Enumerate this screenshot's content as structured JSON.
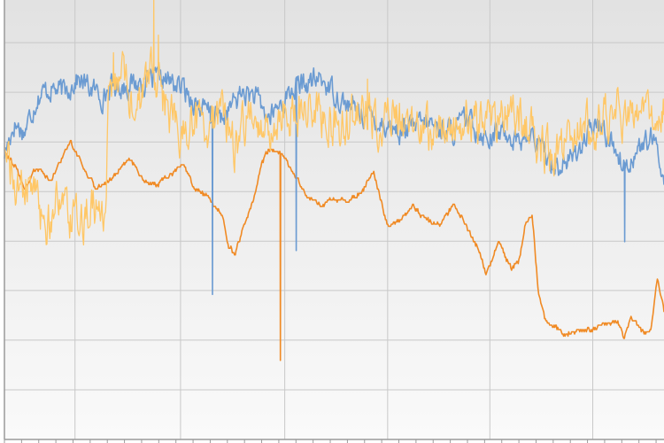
{
  "chart_data": {
    "type": "line",
    "title": "",
    "xlabel": "",
    "ylabel": "",
    "grid": true,
    "legend": "none",
    "xlim": [
      0,
      100
    ],
    "ylim": [
      0,
      100
    ],
    "y_gridlines": [
      0,
      11.3,
      22.6,
      33.9,
      45.1,
      56.4,
      67.7,
      79.0,
      90.3,
      101.5
    ],
    "x_gridlines": [
      10.7,
      26.7,
      42.5,
      58.1,
      73.6,
      89.2
    ],
    "colors": {
      "blue": "#6b9bd2",
      "orange": "#f08a24",
      "yellow": "#ffc766",
      "grid": "#c8c8c8",
      "bg_top": "#e2e2e2",
      "bg_bottom": "#fafafa"
    },
    "series": [
      {
        "name": "blue",
        "noise": 2.2,
        "x": [
          0,
          1.5,
          3,
          5,
          7,
          9,
          11,
          13,
          15,
          16,
          20,
          24,
          27,
          30,
          33,
          36,
          38,
          40,
          44,
          48,
          52,
          56,
          60,
          64,
          68,
          70,
          73,
          76,
          78,
          80,
          82,
          84,
          86,
          88,
          90,
          92,
          94,
          96,
          98,
          99.3,
          100
        ],
        "y": [
          65,
          72,
          70,
          78,
          80,
          79,
          82,
          80,
          78,
          80,
          81,
          82,
          80,
          75,
          73,
          79,
          78,
          73,
          80,
          82,
          76,
          73,
          70,
          72,
          70,
          73,
          69,
          70,
          68,
          69,
          65,
          62,
          64,
          68,
          72,
          68,
          62,
          66,
          68,
          65,
          58
        ],
        "spikes": [
          {
            "x": 31.5,
            "y": 33
          },
          {
            "x": 44.2,
            "y": 43
          },
          {
            "x": 57.0,
            "y": 72
          },
          {
            "x": 94.0,
            "y": 45
          },
          {
            "x": 31.2,
            "y": 72
          }
        ]
      },
      {
        "name": "orange",
        "noise": 0.45,
        "x": [
          0,
          2,
          3,
          5,
          7,
          9,
          10,
          11,
          12,
          14,
          16,
          17,
          19,
          21,
          23,
          25,
          27,
          29,
          31,
          33,
          34,
          35,
          36,
          38,
          39,
          40,
          42,
          44,
          46,
          48,
          50,
          52,
          54,
          56,
          58,
          60,
          62,
          64,
          66,
          68,
          70,
          72,
          73,
          74,
          75,
          76,
          77,
          78,
          79,
          80,
          81,
          82,
          83,
          85,
          87,
          89,
          91,
          93,
          94,
          95,
          96,
          97,
          98,
          99,
          100
        ],
        "y": [
          66,
          61,
          57,
          62,
          59,
          65,
          68,
          65,
          62,
          57,
          59,
          61,
          64,
          59,
          58,
          60,
          63,
          57,
          55,
          51,
          44,
          42,
          47,
          56,
          63,
          66,
          65,
          60,
          55,
          53,
          55,
          54,
          56,
          61,
          49,
          50,
          53,
          50,
          49,
          53,
          49,
          43,
          38,
          41,
          45,
          41,
          39,
          41,
          49,
          51,
          33,
          27,
          26,
          24,
          25,
          25,
          26,
          27,
          23,
          28,
          26,
          24,
          25,
          37,
          29
        ],
        "drops": [
          {
            "x": 41.8,
            "y": 18
          }
        ]
      },
      {
        "name": "yellow",
        "noise": 4.2,
        "x": [
          0,
          2,
          4,
          6,
          8,
          10,
          12,
          14,
          15.3,
          15.8,
          17,
          18,
          19,
          20,
          21,
          22,
          23,
          24,
          25,
          27,
          29,
          31,
          33,
          35,
          37,
          39,
          41,
          43,
          44,
          45,
          47,
          49,
          51,
          53,
          55,
          57,
          59,
          61,
          63,
          65,
          67,
          69,
          71,
          73,
          75,
          77,
          79,
          81,
          83,
          85,
          87,
          89,
          91,
          93,
          95,
          97,
          99,
          100
        ],
        "y": [
          68,
          56,
          58,
          48,
          54,
          49,
          50,
          53,
          51,
          75,
          80,
          84,
          76,
          74,
          79,
          84,
          82,
          77,
          74,
          70,
          73,
          71,
          75,
          67,
          74,
          69,
          72,
          77,
          72,
          76,
          74,
          72,
          71,
          74,
          74,
          70,
          75,
          70,
          71,
          69,
          70,
          72,
          73,
          71,
          74,
          75,
          72,
          67,
          65,
          69,
          71,
          70,
          73,
          75,
          73,
          74,
          72,
          75
        ],
        "spikes": [
          {
            "x": 22.6,
            "y": 101
          },
          {
            "x": 23.3,
            "y": 92
          },
          {
            "x": 16.5,
            "y": 88
          },
          {
            "x": 55.0,
            "y": 82
          }
        ]
      }
    ]
  }
}
